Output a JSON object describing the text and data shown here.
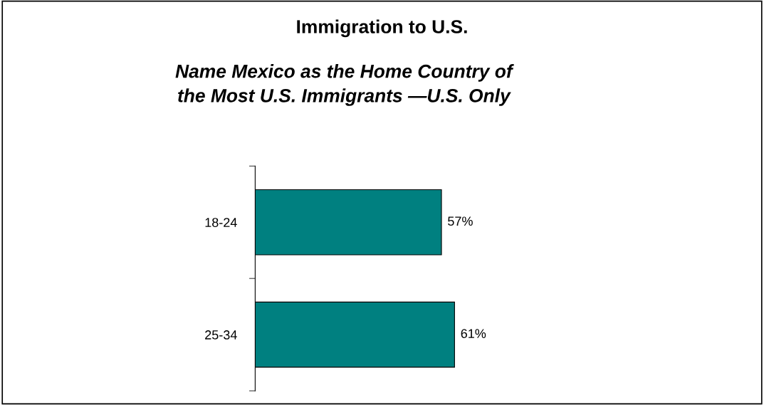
{
  "chart_data": {
    "type": "bar",
    "orientation": "horizontal",
    "title": "Immigration to U.S.",
    "subtitle": "Name Mexico as the Home Country of\nthe Most U.S. Immigrants —U.S. Only",
    "categories": [
      "18-24",
      "25-34"
    ],
    "values": [
      57,
      61
    ],
    "color": "#008080",
    "value_labels": [
      "57%",
      "61%"
    ],
    "tick_labels": "y",
    "grid": false,
    "legend": false
  }
}
